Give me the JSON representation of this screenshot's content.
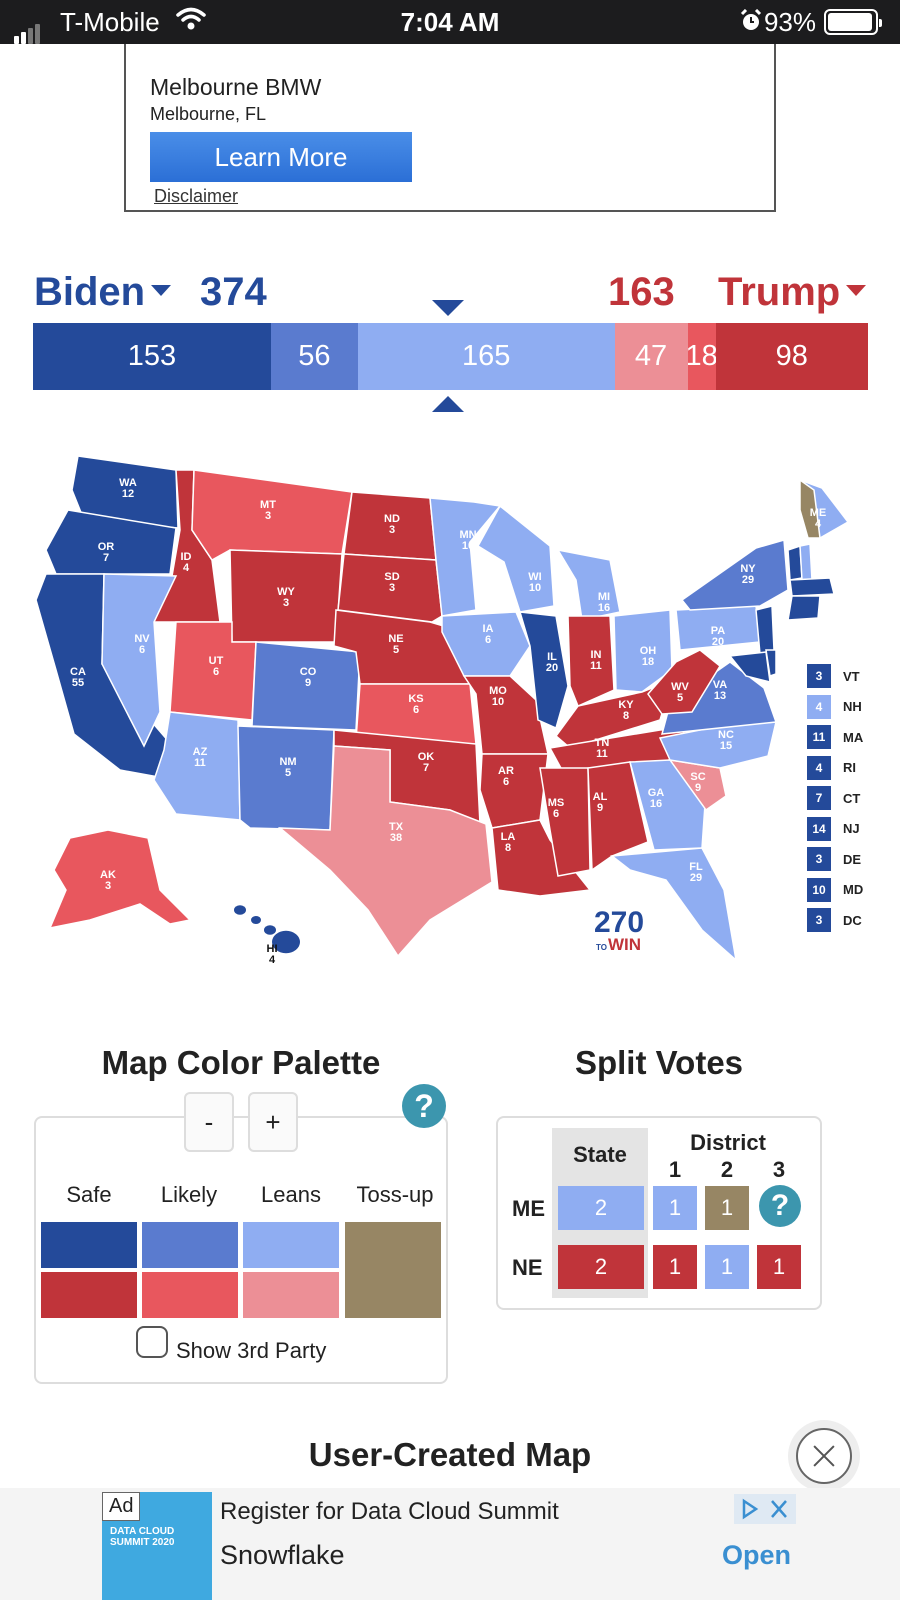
{
  "status_bar": {
    "carrier": "T-Mobile",
    "time": "7:04 AM",
    "battery": "93%"
  },
  "top_ad": {
    "name": "Melbourne BMW",
    "location": "Melbourne, FL",
    "cta": "Learn More",
    "disclaimer": "Disclaimer"
  },
  "scoreboard": {
    "dem_name": "Biden",
    "dem_total": "374",
    "rep_name": "Trump",
    "rep_total": "163",
    "segments": [
      {
        "label": "153",
        "value": 153,
        "color": "#244a9a"
      },
      {
        "label": "56",
        "value": 56,
        "color": "#5a7bcf"
      },
      {
        "label": "165",
        "value": 165,
        "color": "#8fadf2"
      },
      {
        "label": "47",
        "value": 47,
        "color": "#ec8f96"
      },
      {
        "label": "18",
        "value": 18,
        "color": "#e8575e"
      },
      {
        "label": "98",
        "value": 98,
        "color": "#c0343a"
      }
    ]
  },
  "colors": {
    "safe_d": "#244a9a",
    "likely_d": "#5a7bcf",
    "lean_d": "#8fadf2",
    "safe_r": "#c0343a",
    "likely_r": "#e8575e",
    "lean_r": "#ec8f96",
    "tossup": "#978664"
  },
  "map": {
    "logo_top": "270",
    "logo_to": "TO",
    "logo_win": "WIN",
    "states": [
      {
        "abbr": "WA",
        "ev": "12",
        "rating": "safe_d"
      },
      {
        "abbr": "OR",
        "ev": "7",
        "rating": "safe_d"
      },
      {
        "abbr": "CA",
        "ev": "55",
        "rating": "safe_d"
      },
      {
        "abbr": "ID",
        "ev": "4",
        "rating": "safe_r"
      },
      {
        "abbr": "NV",
        "ev": "6",
        "rating": "lean_d"
      },
      {
        "abbr": "MT",
        "ev": "3",
        "rating": "likely_r"
      },
      {
        "abbr": "WY",
        "ev": "3",
        "rating": "safe_r"
      },
      {
        "abbr": "UT",
        "ev": "6",
        "rating": "likely_r"
      },
      {
        "abbr": "AZ",
        "ev": "11",
        "rating": "lean_d"
      },
      {
        "abbr": "CO",
        "ev": "9",
        "rating": "likely_d"
      },
      {
        "abbr": "NM",
        "ev": "5",
        "rating": "likely_d"
      },
      {
        "abbr": "ND",
        "ev": "3",
        "rating": "safe_r"
      },
      {
        "abbr": "SD",
        "ev": "3",
        "rating": "safe_r"
      },
      {
        "abbr": "NE",
        "ev": "5",
        "rating": "safe_r"
      },
      {
        "abbr": "KS",
        "ev": "6",
        "rating": "likely_r"
      },
      {
        "abbr": "OK",
        "ev": "7",
        "rating": "safe_r"
      },
      {
        "abbr": "TX",
        "ev": "38",
        "rating": "lean_r"
      },
      {
        "abbr": "MN",
        "ev": "10",
        "rating": "lean_d"
      },
      {
        "abbr": "IA",
        "ev": "6",
        "rating": "lean_d"
      },
      {
        "abbr": "MO",
        "ev": "10",
        "rating": "safe_r"
      },
      {
        "abbr": "AR",
        "ev": "6",
        "rating": "safe_r"
      },
      {
        "abbr": "LA",
        "ev": "8",
        "rating": "safe_r"
      },
      {
        "abbr": "WI",
        "ev": "10",
        "rating": "lean_d"
      },
      {
        "abbr": "IL",
        "ev": "20",
        "rating": "safe_d"
      },
      {
        "abbr": "MI",
        "ev": "16",
        "rating": "lean_d"
      },
      {
        "abbr": "IN",
        "ev": "11",
        "rating": "safe_r"
      },
      {
        "abbr": "OH",
        "ev": "18",
        "rating": "lean_d"
      },
      {
        "abbr": "KY",
        "ev": "8",
        "rating": "safe_r"
      },
      {
        "abbr": "TN",
        "ev": "11",
        "rating": "safe_r"
      },
      {
        "abbr": "MS",
        "ev": "6",
        "rating": "safe_r"
      },
      {
        "abbr": "AL",
        "ev": "9",
        "rating": "safe_r"
      },
      {
        "abbr": "GA",
        "ev": "16",
        "rating": "lean_d"
      },
      {
        "abbr": "FL",
        "ev": "29",
        "rating": "lean_d"
      },
      {
        "abbr": "SC",
        "ev": "9",
        "rating": "lean_r"
      },
      {
        "abbr": "NC",
        "ev": "15",
        "rating": "lean_d"
      },
      {
        "abbr": "VA",
        "ev": "13",
        "rating": "likely_d"
      },
      {
        "abbr": "WV",
        "ev": "5",
        "rating": "safe_r"
      },
      {
        "abbr": "PA",
        "ev": "20",
        "rating": "lean_d"
      },
      {
        "abbr": "NY",
        "ev": "29",
        "rating": "likely_d"
      },
      {
        "abbr": "ME",
        "ev": "4",
        "rating": "lean_d"
      },
      {
        "abbr": "AK",
        "ev": "3",
        "rating": "likely_r"
      },
      {
        "abbr": "HI",
        "ev": "4",
        "rating": "safe_d"
      }
    ],
    "small_states": [
      {
        "ev": "3",
        "abbr": "VT",
        "rating": "safe_d"
      },
      {
        "ev": "4",
        "abbr": "NH",
        "rating": "lean_d"
      },
      {
        "ev": "11",
        "abbr": "MA",
        "rating": "safe_d"
      },
      {
        "ev": "4",
        "abbr": "RI",
        "rating": "safe_d"
      },
      {
        "ev": "7",
        "abbr": "CT",
        "rating": "safe_d"
      },
      {
        "ev": "14",
        "abbr": "NJ",
        "rating": "safe_d"
      },
      {
        "ev": "3",
        "abbr": "DE",
        "rating": "safe_d"
      },
      {
        "ev": "10",
        "abbr": "MD",
        "rating": "safe_d"
      },
      {
        "ev": "3",
        "abbr": "DC",
        "rating": "safe_d"
      }
    ]
  },
  "palette": {
    "title": "Map Color Palette",
    "minus": "-",
    "plus": "+",
    "help": "?",
    "columns": [
      "Safe",
      "Likely",
      "Leans",
      "Toss-up"
    ],
    "show_third_party": "Show 3rd Party"
  },
  "split_votes": {
    "title": "Split Votes",
    "state_header": "State",
    "district_header": "District",
    "district_nums": [
      "1",
      "2",
      "3"
    ],
    "help": "?",
    "rows": [
      {
        "state": "ME",
        "state_votes": "2",
        "districts": [
          "1",
          "1"
        ]
      },
      {
        "state": "NE",
        "state_votes": "2",
        "districts": [
          "1",
          "1",
          "1"
        ]
      }
    ]
  },
  "user_created_map": "User-Created Map",
  "bottom_ad": {
    "tag": "Ad",
    "headline": "Register for Data Cloud Summit",
    "advertiser": "Snowflake",
    "cta": "Open",
    "thumb_title": "DATA CLOUD SUMMIT 2020"
  }
}
